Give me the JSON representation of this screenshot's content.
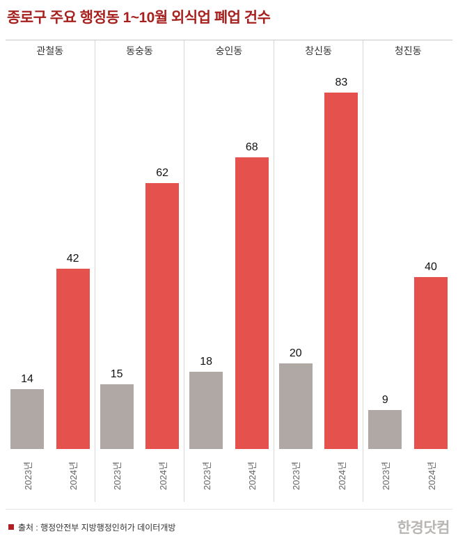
{
  "title": "종로구 주요 행정동 1~10월 외식업 폐업 건수",
  "chart_data": {
    "type": "bar",
    "title": "종로구 주요 행정동 1~10월 외식업 폐업 건수",
    "categories": [
      "관철동",
      "동숭동",
      "숭인동",
      "창신동",
      "청진동"
    ],
    "series": [
      {
        "key": "2023",
        "name": "2023년",
        "color": "#b0a8a4",
        "values": [
          14,
          15,
          18,
          20,
          9
        ]
      },
      {
        "key": "2024",
        "name": "2024년",
        "color": "#e5514d",
        "values": [
          42,
          62,
          68,
          83,
          40
        ]
      }
    ],
    "x_tick_labels": [
      "2023년",
      "2024년"
    ],
    "ylim": [
      0,
      90
    ],
    "value_labels_shown": true,
    "grid": false,
    "legend_position": "none"
  },
  "footer": {
    "source": "출처 : 행정안전부 지방행정인허가 데이터개방",
    "logo_text": "한경닷컴"
  },
  "colors": {
    "title": "#a6201e",
    "source_bullet": "#b01f24",
    "bar_2023": "#b0a8a4",
    "bar_2024": "#e5514d"
  }
}
